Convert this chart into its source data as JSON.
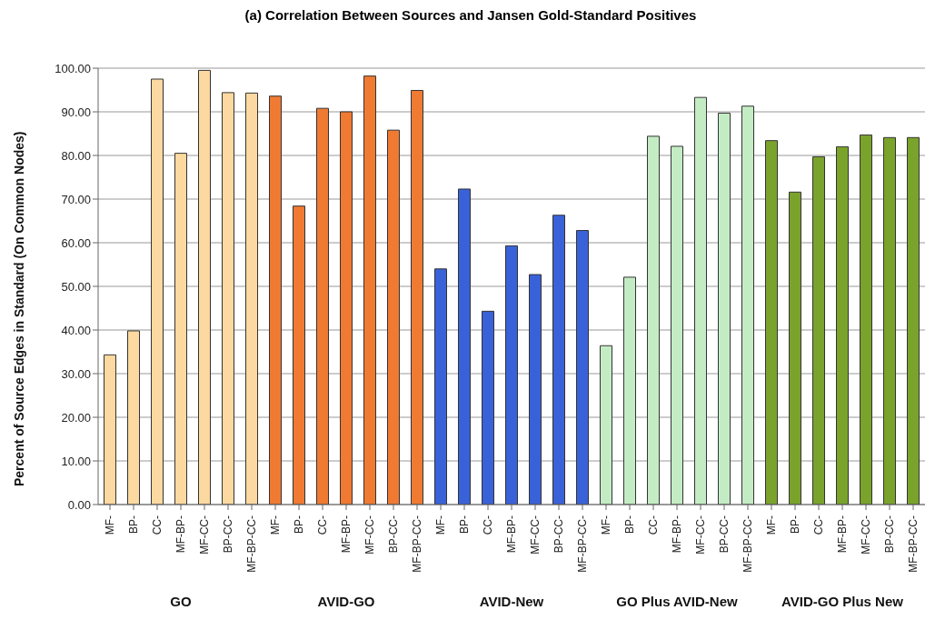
{
  "chart_data": {
    "type": "bar",
    "title": "(a) Correlation Between Sources and Jansen Gold-Standard Positives",
    "ylabel": "Percent of Source Edges in Standard (On Common Nodes)",
    "categories": [
      "MF-",
      "BP-",
      "CC-",
      "MF-BP-",
      "MF-CC-",
      "BP-CC-",
      "MF-BP-CC-",
      "MF-",
      "BP-",
      "CC-",
      "MF-BP-",
      "MF-CC-",
      "BP-CC-",
      "MF-BP-CC-",
      "MF-",
      "BP-",
      "CC-",
      "MF-BP-",
      "MF-CC-",
      "BP-CC-",
      "MF-BP-CC-",
      "MF-",
      "BP-",
      "CC-",
      "MF-BP-",
      "MF-CC-",
      "BP-CC-",
      "MF-BP-CC-",
      "MF-",
      "BP-",
      "CC-",
      "MF-BP-",
      "MF-CC-",
      "BP-CC-",
      "MF-BP-CC-"
    ],
    "values": [
      34.3,
      39.8,
      97.5,
      80.5,
      99.5,
      94.4,
      94.3,
      93.6,
      68.4,
      90.8,
      90.0,
      98.2,
      85.8,
      94.9,
      54.0,
      72.3,
      44.3,
      59.3,
      52.7,
      66.3,
      62.8,
      36.4,
      52.1,
      84.4,
      82.1,
      93.3,
      89.7,
      91.3,
      83.4,
      71.6,
      79.7,
      82.0,
      84.7,
      84.1,
      84.1
    ],
    "colors": [
      "#fcd9a0",
      "#fcd9a0",
      "#fcd9a0",
      "#fcd9a0",
      "#fcd9a0",
      "#fcd9a0",
      "#fcd9a0",
      "#f07a32",
      "#f07a32",
      "#f07a32",
      "#f07a32",
      "#f07a32",
      "#f07a32",
      "#f07a32",
      "#3a62d8",
      "#3a62d8",
      "#3a62d8",
      "#3a62d8",
      "#3a62d8",
      "#3a62d8",
      "#3a62d8",
      "#c4ecc4",
      "#c4ecc4",
      "#c4ecc4",
      "#c4ecc4",
      "#c4ecc4",
      "#c4ecc4",
      "#c4ecc4",
      "#7aa32c",
      "#7aa32c",
      "#7aa32c",
      "#7aa32c",
      "#7aa32c",
      "#7aa32c",
      "#7aa32c"
    ],
    "annotations": [
      "GO",
      "AVID-GO",
      "AVID-New",
      "GO Plus AVID-New",
      "AVID-GO Plus New"
    ],
    "ylim": [
      0,
      100
    ],
    "yticks": [
      {
        "value": 0,
        "label": "0.00"
      },
      {
        "value": 10,
        "label": "10.00"
      },
      {
        "value": 20,
        "label": "20.00"
      },
      {
        "value": 30,
        "label": "30.00"
      },
      {
        "value": 40,
        "label": "40.00"
      },
      {
        "value": 50,
        "label": "50.00"
      },
      {
        "value": 60,
        "label": "60.00"
      },
      {
        "value": 70,
        "label": "70.00"
      },
      {
        "value": 80,
        "label": "80.00"
      },
      {
        "value": 90,
        "label": "90.00"
      },
      {
        "value": 100,
        "label": "100.00"
      }
    ],
    "grid": "y"
  }
}
